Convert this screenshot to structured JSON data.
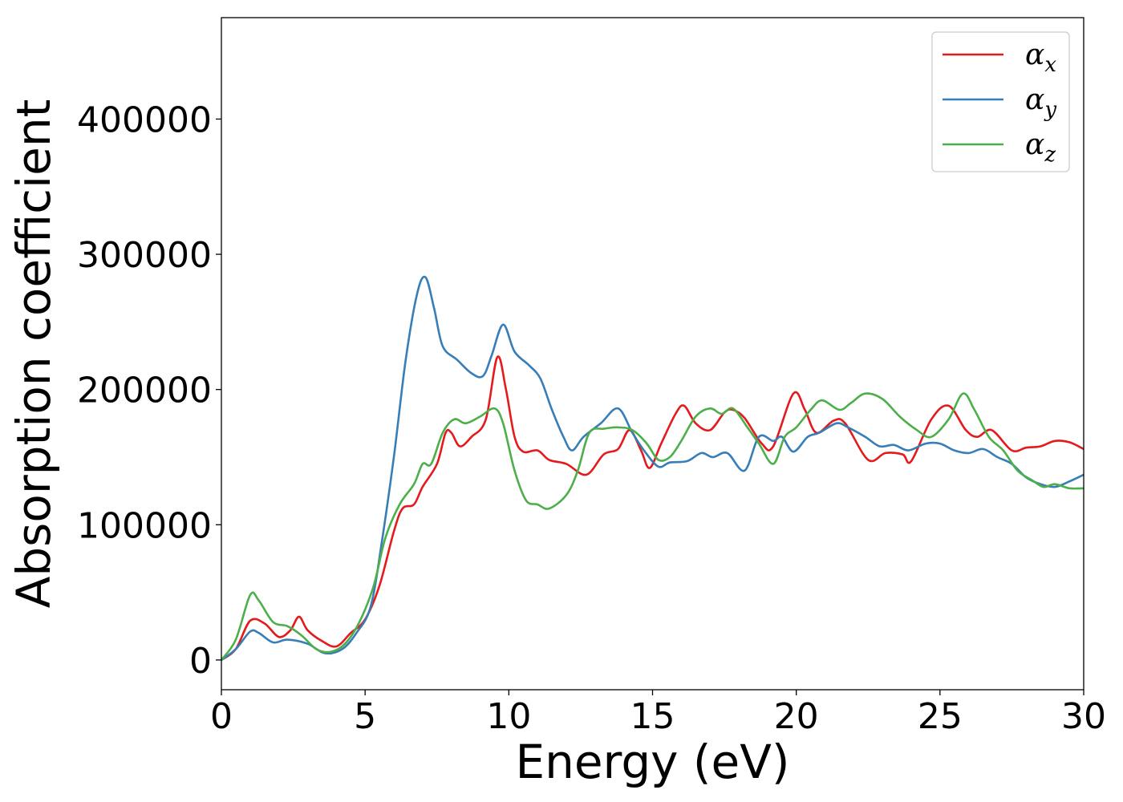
{
  "chart_data": {
    "type": "line",
    "title": "",
    "xlabel": "Energy (eV)",
    "ylabel": "Absorption coefficient",
    "xlim": [
      0,
      30
    ],
    "ylim": [
      -22000,
      475000
    ],
    "xticks": [
      0,
      5,
      10,
      15,
      20,
      25,
      30
    ],
    "yticks": [
      0,
      100000,
      200000,
      300000,
      400000
    ],
    "legend_position": "top-right",
    "grid": false,
    "series": [
      {
        "name": "α",
        "subscript": "x",
        "color": "#e41a1c",
        "points": [
          [
            0,
            0
          ],
          [
            0.5,
            8000
          ],
          [
            1,
            29000
          ],
          [
            1.5,
            27000
          ],
          [
            2,
            17000
          ],
          [
            2.4,
            22000
          ],
          [
            2.7,
            32000
          ],
          [
            3,
            22000
          ],
          [
            3.5,
            14000
          ],
          [
            4,
            10000
          ],
          [
            4.5,
            20000
          ],
          [
            5,
            30000
          ],
          [
            5.5,
            55000
          ],
          [
            6,
            95000
          ],
          [
            6.3,
            112000
          ],
          [
            6.7,
            115000
          ],
          [
            7,
            128000
          ],
          [
            7.5,
            145000
          ],
          [
            7.8,
            168000
          ],
          [
            8,
            168000
          ],
          [
            8.3,
            158000
          ],
          [
            8.7,
            165000
          ],
          [
            9.2,
            178000
          ],
          [
            9.6,
            224000
          ],
          [
            9.9,
            200000
          ],
          [
            10.2,
            165000
          ],
          [
            10.5,
            154000
          ],
          [
            11,
            155000
          ],
          [
            11.4,
            148000
          ],
          [
            12,
            145000
          ],
          [
            12.7,
            137000
          ],
          [
            13.3,
            152000
          ],
          [
            13.8,
            156000
          ],
          [
            14.2,
            170000
          ],
          [
            14.6,
            155000
          ],
          [
            14.9,
            142000
          ],
          [
            15.3,
            160000
          ],
          [
            15.8,
            182000
          ],
          [
            16.1,
            188000
          ],
          [
            16.5,
            175000
          ],
          [
            17,
            170000
          ],
          [
            17.5,
            183000
          ],
          [
            17.8,
            185000
          ],
          [
            18.2,
            179000
          ],
          [
            18.8,
            160000
          ],
          [
            19.2,
            158000
          ],
          [
            19.9,
            197000
          ],
          [
            20.3,
            185000
          ],
          [
            20.7,
            168000
          ],
          [
            21.3,
            177000
          ],
          [
            21.7,
            175000
          ],
          [
            22.5,
            148000
          ],
          [
            23.1,
            153000
          ],
          [
            23.7,
            152000
          ],
          [
            24,
            147000
          ],
          [
            24.7,
            178000
          ],
          [
            25.3,
            188000
          ],
          [
            25.9,
            170000
          ],
          [
            26.3,
            165000
          ],
          [
            26.8,
            170000
          ],
          [
            27.5,
            155000
          ],
          [
            28,
            157000
          ],
          [
            28.5,
            158000
          ],
          [
            29,
            162000
          ],
          [
            29.5,
            161000
          ],
          [
            30,
            156000
          ]
        ]
      },
      {
        "name": "α",
        "subscript": "y",
        "color": "#377eb8",
        "points": [
          [
            0,
            0
          ],
          [
            0.5,
            8000
          ],
          [
            1,
            21000
          ],
          [
            1.3,
            20000
          ],
          [
            1.8,
            13000
          ],
          [
            2.3,
            15000
          ],
          [
            3,
            12000
          ],
          [
            3.6,
            5000
          ],
          [
            4.2,
            8000
          ],
          [
            4.7,
            20000
          ],
          [
            5.2,
            40000
          ],
          [
            5.6,
            90000
          ],
          [
            6,
            150000
          ],
          [
            6.4,
            220000
          ],
          [
            6.8,
            270000
          ],
          [
            7.1,
            283000
          ],
          [
            7.4,
            260000
          ],
          [
            7.7,
            232000
          ],
          [
            8.2,
            222000
          ],
          [
            8.7,
            212000
          ],
          [
            9.1,
            210000
          ],
          [
            9.4,
            225000
          ],
          [
            9.8,
            248000
          ],
          [
            10.2,
            228000
          ],
          [
            10.7,
            218000
          ],
          [
            11.1,
            208000
          ],
          [
            11.5,
            185000
          ],
          [
            11.9,
            165000
          ],
          [
            12.2,
            155000
          ],
          [
            12.6,
            165000
          ],
          [
            13.2,
            175000
          ],
          [
            13.8,
            186000
          ],
          [
            14.3,
            168000
          ],
          [
            14.7,
            155000
          ],
          [
            15.2,
            143000
          ],
          [
            15.6,
            146000
          ],
          [
            16.2,
            147000
          ],
          [
            16.7,
            153000
          ],
          [
            17.1,
            150000
          ],
          [
            17.6,
            153000
          ],
          [
            18.2,
            140000
          ],
          [
            18.7,
            165000
          ],
          [
            19.2,
            162000
          ],
          [
            19.5,
            165000
          ],
          [
            19.9,
            154000
          ],
          [
            20.4,
            165000
          ],
          [
            20.8,
            168000
          ],
          [
            21.4,
            175000
          ],
          [
            21.8,
            172000
          ],
          [
            22.4,
            165000
          ],
          [
            22.9,
            158000
          ],
          [
            23.4,
            159000
          ],
          [
            23.9,
            155000
          ],
          [
            24.5,
            160000
          ],
          [
            25,
            160000
          ],
          [
            25.5,
            155000
          ],
          [
            26,
            153000
          ],
          [
            26.5,
            156000
          ],
          [
            27,
            150000
          ],
          [
            27.5,
            145000
          ],
          [
            28,
            135000
          ],
          [
            28.5,
            130000
          ],
          [
            29,
            128000
          ],
          [
            29.5,
            132000
          ],
          [
            30,
            137000
          ]
        ]
      },
      {
        "name": "α",
        "subscript": "z",
        "color": "#4daf4a",
        "points": [
          [
            0,
            0
          ],
          [
            0.5,
            15000
          ],
          [
            1,
            48000
          ],
          [
            1.3,
            44000
          ],
          [
            1.8,
            28000
          ],
          [
            2.3,
            25000
          ],
          [
            2.8,
            18000
          ],
          [
            3.3,
            8000
          ],
          [
            3.8,
            6000
          ],
          [
            4.3,
            12000
          ],
          [
            4.8,
            28000
          ],
          [
            5.3,
            55000
          ],
          [
            5.7,
            90000
          ],
          [
            6.2,
            115000
          ],
          [
            6.7,
            130000
          ],
          [
            7,
            145000
          ],
          [
            7.3,
            145000
          ],
          [
            7.7,
            168000
          ],
          [
            8.1,
            178000
          ],
          [
            8.5,
            175000
          ],
          [
            9,
            180000
          ],
          [
            9.5,
            186000
          ],
          [
            9.8,
            175000
          ],
          [
            10.2,
            140000
          ],
          [
            10.6,
            118000
          ],
          [
            11,
            115000
          ],
          [
            11.4,
            112000
          ],
          [
            12,
            122000
          ],
          [
            12.4,
            140000
          ],
          [
            12.8,
            168000
          ],
          [
            13.3,
            171000
          ],
          [
            13.8,
            172000
          ],
          [
            14.3,
            170000
          ],
          [
            14.8,
            160000
          ],
          [
            15.2,
            148000
          ],
          [
            15.6,
            150000
          ],
          [
            16,
            162000
          ],
          [
            16.5,
            180000
          ],
          [
            17,
            186000
          ],
          [
            17.4,
            182000
          ],
          [
            17.8,
            186000
          ],
          [
            18.3,
            172000
          ],
          [
            18.7,
            160000
          ],
          [
            19.2,
            145000
          ],
          [
            19.6,
            165000
          ],
          [
            20,
            172000
          ],
          [
            20.5,
            185000
          ],
          [
            20.9,
            192000
          ],
          [
            21.5,
            185000
          ],
          [
            21.9,
            190000
          ],
          [
            22.4,
            197000
          ],
          [
            23,
            193000
          ],
          [
            23.6,
            180000
          ],
          [
            24.2,
            170000
          ],
          [
            24.7,
            165000
          ],
          [
            25.3,
            178000
          ],
          [
            25.8,
            197000
          ],
          [
            26.2,
            185000
          ],
          [
            26.7,
            165000
          ],
          [
            27.2,
            155000
          ],
          [
            27.7,
            140000
          ],
          [
            28.2,
            133000
          ],
          [
            28.6,
            128000
          ],
          [
            29,
            130000
          ],
          [
            29.5,
            127000
          ],
          [
            30,
            127000
          ]
        ]
      }
    ]
  }
}
